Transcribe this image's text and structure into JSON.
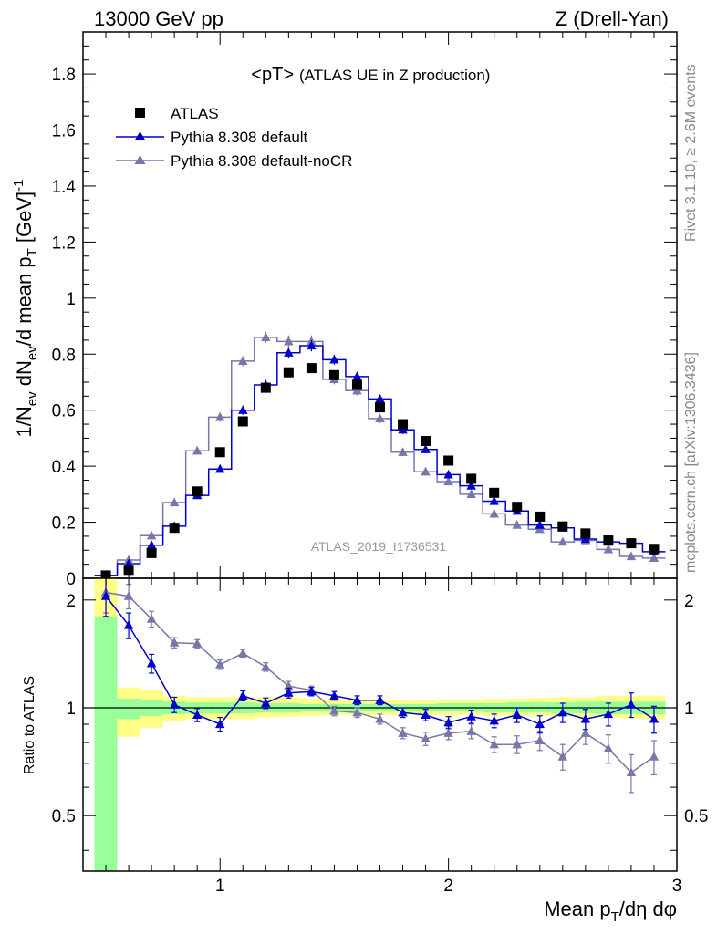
{
  "header": {
    "left": "13000 GeV pp",
    "right": "Z (Drell-Yan)"
  },
  "side_labels": {
    "rivet": "Rivet 3.1.10, ≥ 2.6M events",
    "mcplots": "mcplots.cern.ch [arXiv:1306.3436]"
  },
  "panel_title": {
    "main": "<pT>",
    "sub": "(ATLAS UE in Z production)"
  },
  "watermark": "ATLAS_2019_I1736531",
  "colors": {
    "data": "#000000",
    "default": "#0000cc",
    "nocr": "#7777aa",
    "band_yellow": "#ffff88",
    "band_green": "#99ff99"
  },
  "chart_data": [
    {
      "type": "scatter",
      "title": "<pT> (ATLAS UE in Z production)",
      "ylabel": "1/N_ev dN_ev/d mean p_T [GeV]^-1",
      "xlim": [
        0.4,
        3.0
      ],
      "ylim": [
        0,
        1.95
      ],
      "yticks": [
        0,
        0.2,
        0.4,
        0.6,
        0.8,
        1,
        1.2,
        1.4,
        1.6,
        1.8
      ],
      "ytick_labels": [
        "0",
        "0.2",
        "0.4",
        "0.6",
        "0.8",
        "1",
        "1.2",
        "1.4",
        "1.6",
        "1.8"
      ],
      "legend_position": "top-left",
      "x": [
        0.5,
        0.6,
        0.7,
        0.8,
        0.9,
        1.0,
        1.1,
        1.2,
        1.3,
        1.4,
        1.5,
        1.6,
        1.7,
        1.8,
        1.9,
        2.0,
        2.1,
        2.2,
        2.3,
        2.4,
        2.5,
        2.6,
        2.7,
        2.8,
        2.9
      ],
      "series": [
        {
          "name": "ATLAS",
          "marker": "square",
          "values": [
            0.01,
            0.03,
            0.09,
            0.18,
            0.31,
            0.45,
            0.56,
            0.68,
            0.735,
            0.75,
            0.725,
            0.69,
            0.61,
            0.55,
            0.49,
            0.42,
            0.355,
            0.305,
            0.255,
            0.22,
            0.185,
            0.16,
            0.135,
            0.125,
            0.105
          ]
        },
        {
          "name": "Pythia 8.308 default",
          "marker": "triangle",
          "values": [
            0.01,
            0.052,
            0.118,
            0.186,
            0.296,
            0.39,
            0.6,
            0.69,
            0.805,
            0.83,
            0.78,
            0.72,
            0.64,
            0.53,
            0.46,
            0.37,
            0.33,
            0.275,
            0.24,
            0.19,
            0.18,
            0.14,
            0.13,
            0.125,
            0.095
          ],
          "errors": [
            0.005,
            0.006,
            0.008,
            0.01,
            0.012,
            0.014,
            0.016,
            0.018,
            0.02,
            0.02,
            0.018,
            0.017,
            0.016,
            0.015,
            0.013,
            0.012,
            0.011,
            0.01,
            0.009,
            0.008,
            0.008,
            0.007,
            0.007,
            0.007,
            0.006
          ]
        },
        {
          "name": "Pythia 8.308 default-noCR",
          "marker": "triangle",
          "values": [
            0.01,
            0.065,
            0.152,
            0.27,
            0.455,
            0.575,
            0.775,
            0.86,
            0.845,
            0.845,
            0.71,
            0.67,
            0.57,
            0.45,
            0.38,
            0.345,
            0.3,
            0.23,
            0.19,
            0.175,
            0.13,
            0.135,
            0.103,
            0.078,
            0.072
          ],
          "errors": [
            0.005,
            0.007,
            0.009,
            0.012,
            0.014,
            0.016,
            0.018,
            0.02,
            0.022,
            0.022,
            0.018,
            0.017,
            0.016,
            0.014,
            0.013,
            0.012,
            0.011,
            0.01,
            0.009,
            0.008,
            0.008,
            0.007,
            0.007,
            0.006,
            0.006
          ]
        }
      ]
    },
    {
      "type": "scatter",
      "xlabel": "Mean p_T/dη dφ",
      "ylabel": "Ratio to ATLAS",
      "xlim": [
        0.4,
        3.0
      ],
      "ylim": [
        0.35,
        2.3
      ],
      "xticks": [
        1,
        2,
        3
      ],
      "xtick_labels": [
        "1",
        "2",
        "3"
      ],
      "yticks": [
        0.5,
        1,
        2
      ],
      "ytick_labels": [
        "0.5",
        "1",
        "2"
      ],
      "bands": {
        "edges": [
          0.45,
          0.55,
          0.65,
          0.75,
          0.85,
          0.95,
          1.05,
          1.15,
          1.25,
          1.35,
          1.45,
          1.55,
          1.65,
          1.75,
          1.85,
          1.95,
          2.05,
          2.15,
          2.25,
          2.35,
          2.45,
          2.55,
          2.65,
          2.75,
          2.85,
          2.95
        ],
        "yellow_low": [
          0.35,
          0.83,
          0.88,
          0.92,
          0.93,
          0.93,
          0.93,
          0.94,
          0.945,
          0.95,
          0.955,
          0.955,
          0.955,
          0.955,
          0.955,
          0.955,
          0.955,
          0.95,
          0.95,
          0.95,
          0.945,
          0.94,
          0.94,
          0.935,
          0.93
        ],
        "yellow_high": [
          2.3,
          1.14,
          1.12,
          1.08,
          1.07,
          1.07,
          1.07,
          1.07,
          1.07,
          1.06,
          1.055,
          1.055,
          1.05,
          1.05,
          1.05,
          1.055,
          1.055,
          1.06,
          1.06,
          1.065,
          1.07,
          1.07,
          1.08,
          1.08,
          1.08
        ],
        "green_low": [
          0.35,
          0.93,
          0.95,
          0.96,
          0.965,
          0.965,
          0.965,
          0.97,
          0.97,
          0.975,
          0.975,
          0.975,
          0.975,
          0.975,
          0.975,
          0.975,
          0.975,
          0.97,
          0.97,
          0.97,
          0.965,
          0.965,
          0.96,
          0.96,
          0.96
        ],
        "green_high": [
          1.8,
          1.06,
          1.05,
          1.04,
          1.035,
          1.035,
          1.035,
          1.03,
          1.03,
          1.025,
          1.025,
          1.025,
          1.025,
          1.025,
          1.025,
          1.03,
          1.03,
          1.03,
          1.035,
          1.035,
          1.035,
          1.04,
          1.04,
          1.04,
          1.04
        ]
      },
      "series": [
        {
          "name": "Pythia 8.308 default",
          "values": [
            2.05,
            1.7,
            1.33,
            1.02,
            0.955,
            0.9,
            1.08,
            1.03,
            1.1,
            1.11,
            1.08,
            1.05,
            1.05,
            0.97,
            0.955,
            0.91,
            0.945,
            0.92,
            0.955,
            0.9,
            0.97,
            0.93,
            0.96,
            1.02,
            0.93
          ],
          "errors": [
            0.25,
            0.14,
            0.08,
            0.05,
            0.04,
            0.04,
            0.035,
            0.035,
            0.035,
            0.03,
            0.03,
            0.03,
            0.03,
            0.03,
            0.035,
            0.035,
            0.04,
            0.04,
            0.045,
            0.05,
            0.06,
            0.06,
            0.07,
            0.08,
            0.08
          ]
        },
        {
          "name": "Pythia 8.308 default-noCR",
          "values": [
            2.1,
            2.05,
            1.77,
            1.52,
            1.51,
            1.32,
            1.42,
            1.3,
            1.15,
            1.12,
            0.98,
            0.97,
            0.93,
            0.85,
            0.82,
            0.85,
            0.86,
            0.79,
            0.79,
            0.81,
            0.73,
            0.85,
            0.77,
            0.66,
            0.73
          ],
          "errors": [
            0.26,
            0.16,
            0.09,
            0.05,
            0.04,
            0.04,
            0.035,
            0.035,
            0.035,
            0.03,
            0.03,
            0.03,
            0.03,
            0.03,
            0.035,
            0.035,
            0.04,
            0.04,
            0.045,
            0.05,
            0.06,
            0.06,
            0.07,
            0.08,
            0.08
          ]
        }
      ]
    }
  ]
}
